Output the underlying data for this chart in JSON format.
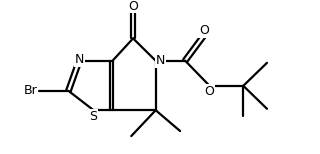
{
  "bg": "#ffffff",
  "lc": "#000000",
  "lw": 1.6,
  "fs": 8.5,
  "xlim": [
    0.0,
    6.8
  ],
  "ylim": [
    -0.9,
    3.0
  ]
}
